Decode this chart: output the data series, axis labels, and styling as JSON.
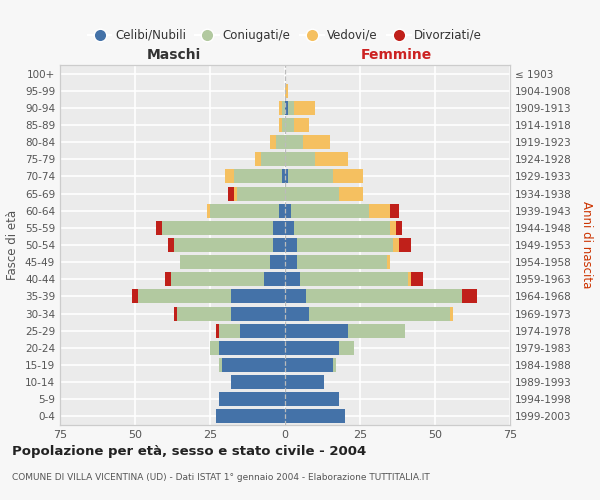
{
  "age_groups": [
    "0-4",
    "5-9",
    "10-14",
    "15-19",
    "20-24",
    "25-29",
    "30-34",
    "35-39",
    "40-44",
    "45-49",
    "50-54",
    "55-59",
    "60-64",
    "65-69",
    "70-74",
    "75-79",
    "80-84",
    "85-89",
    "90-94",
    "95-99",
    "100+"
  ],
  "birth_years": [
    "1999-2003",
    "1994-1998",
    "1989-1993",
    "1984-1988",
    "1979-1983",
    "1974-1978",
    "1969-1973",
    "1964-1968",
    "1959-1963",
    "1954-1958",
    "1949-1953",
    "1944-1948",
    "1939-1943",
    "1934-1938",
    "1929-1933",
    "1924-1928",
    "1919-1923",
    "1914-1918",
    "1909-1913",
    "1904-1908",
    "≤ 1903"
  ],
  "males": {
    "celibe": [
      23,
      22,
      18,
      21,
      22,
      15,
      18,
      18,
      7,
      5,
      4,
      4,
      2,
      0,
      1,
      0,
      0,
      0,
      0,
      0,
      0
    ],
    "coniugato": [
      0,
      0,
      0,
      1,
      3,
      7,
      18,
      31,
      31,
      30,
      33,
      37,
      23,
      16,
      16,
      8,
      3,
      1,
      1,
      0,
      0
    ],
    "vedovo": [
      0,
      0,
      0,
      0,
      0,
      0,
      0,
      0,
      0,
      0,
      0,
      0,
      1,
      1,
      3,
      2,
      2,
      1,
      1,
      0,
      0
    ],
    "divorziato": [
      0,
      0,
      0,
      0,
      0,
      1,
      1,
      2,
      2,
      0,
      2,
      2,
      0,
      2,
      0,
      0,
      0,
      0,
      0,
      0,
      0
    ]
  },
  "females": {
    "nubile": [
      20,
      18,
      13,
      16,
      18,
      21,
      8,
      7,
      5,
      4,
      4,
      3,
      2,
      0,
      1,
      0,
      0,
      0,
      1,
      0,
      0
    ],
    "coniugata": [
      0,
      0,
      0,
      1,
      5,
      19,
      47,
      52,
      36,
      30,
      32,
      32,
      26,
      18,
      15,
      10,
      6,
      3,
      2,
      0,
      0
    ],
    "vedova": [
      0,
      0,
      0,
      0,
      0,
      0,
      1,
      0,
      1,
      1,
      2,
      2,
      7,
      8,
      10,
      11,
      9,
      5,
      7,
      1,
      0
    ],
    "divorziata": [
      0,
      0,
      0,
      0,
      0,
      0,
      0,
      5,
      4,
      0,
      4,
      2,
      3,
      0,
      0,
      0,
      0,
      0,
      0,
      0,
      0
    ]
  },
  "colors": {
    "celibe": "#4472a8",
    "coniugato": "#b2c9a0",
    "vedovo": "#f5c060",
    "divorziato": "#c0201a"
  },
  "title": "Popolazione per età, sesso e stato civile - 2004",
  "subtitle": "COMUNE DI VILLA VICENTINA (UD) - Dati ISTAT 1° gennaio 2004 - Elaborazione TUTTITALIA.IT",
  "xlabel_left": "Maschi",
  "xlabel_right": "Femmine",
  "ylabel_left": "Fasce di età",
  "ylabel_right": "Anni di nascita",
  "xlim": 75,
  "bg_color": "#f7f7f7",
  "plot_bg": "#ebebeb",
  "grid_color": "#ffffff",
  "legend_labels": [
    "Celibi/Nubili",
    "Coniugati/e",
    "Vedovi/e",
    "Divorziati/e"
  ]
}
